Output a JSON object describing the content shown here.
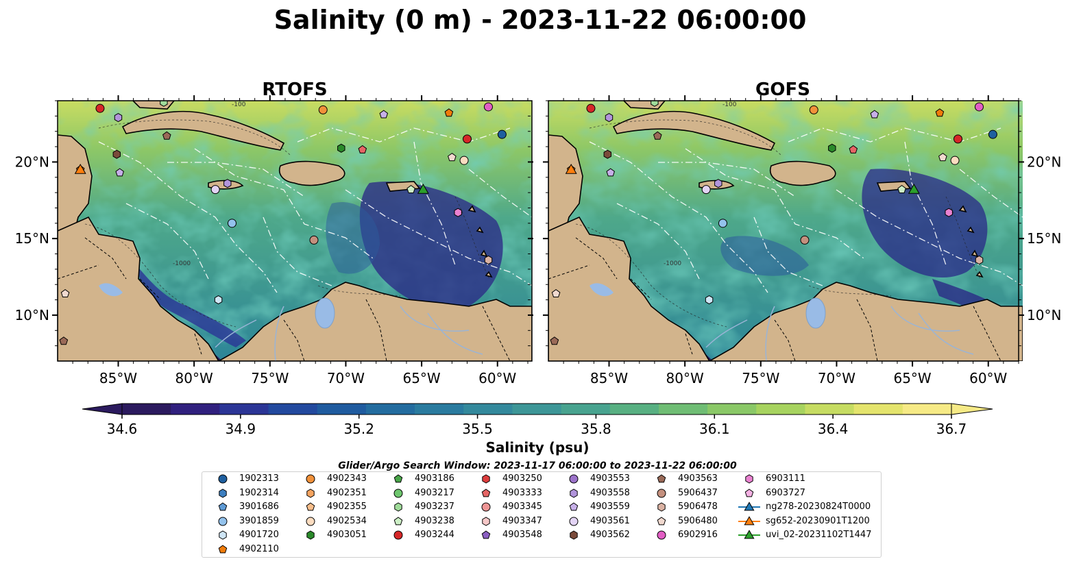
{
  "title": "Salinity (0 m) - 2023-11-22 06:00:00",
  "panels": [
    {
      "name": "RTOFS"
    },
    {
      "name": "GOFS"
    }
  ],
  "axes": {
    "lon_ticks": [
      "85°W",
      "80°W",
      "75°W",
      "70°W",
      "65°W",
      "60°W"
    ],
    "lat_ticks": [
      "20°N",
      "15°N",
      "10°N"
    ],
    "lon_range": [
      -89,
      -58
    ],
    "lat_range": [
      7,
      24
    ]
  },
  "contour_labels": [
    "-100",
    "-1000"
  ],
  "colorbar": {
    "label": "Salinity (psu)",
    "ticks": [
      "34.6",
      "34.9",
      "35.2",
      "35.5",
      "35.8",
      "36.1",
      "36.4",
      "36.7"
    ],
    "min": 34.6,
    "max": 36.7,
    "colors": [
      "#2b1a5e",
      "#30207e",
      "#2b3596",
      "#22499e",
      "#1f5b9f",
      "#236c9f",
      "#2a7b9f",
      "#33899c",
      "#3d9697",
      "#48a38f",
      "#58b082",
      "#6fbd74",
      "#8ac867",
      "#a7d35f",
      "#c6dc62",
      "#e4e46d",
      "#f6ea86"
    ]
  },
  "search_window": "Glider/Argo Search Window: 2023-11-17 06:00:00 to 2023-11-22 06:00:00",
  "colors": {
    "land": "#d2b48c",
    "lakes": "#99bbe6",
    "rivers": "#9ab4d6",
    "eez_lines": "#ffffff"
  },
  "legend": [
    {
      "label": "1902313",
      "marker": "circle",
      "color": "#1f5f9f"
    },
    {
      "label": "1902314",
      "marker": "hexagon",
      "color": "#3d7fc0"
    },
    {
      "label": "3901686",
      "marker": "pentagon",
      "color": "#5f9bd6"
    },
    {
      "label": "3901859",
      "marker": "circle",
      "color": "#93c2ec"
    },
    {
      "label": "4901720",
      "marker": "hexagon",
      "color": "#cfe6f7"
    },
    {
      "label": "4902110",
      "marker": "pentagon",
      "color": "#f07c0a"
    },
    {
      "label": "4902343",
      "marker": "circle",
      "color": "#f1913a"
    },
    {
      "label": "4902351",
      "marker": "hexagon",
      "color": "#f5a460"
    },
    {
      "label": "4902355",
      "marker": "pentagon",
      "color": "#f8be8b"
    },
    {
      "label": "4902534",
      "marker": "circle",
      "color": "#fbdcc0"
    },
    {
      "label": "4903051",
      "marker": "hexagon",
      "color": "#2a8a2a"
    },
    {
      "label": "4903186",
      "marker": "pentagon",
      "color": "#49a549"
    },
    {
      "label": "4903217",
      "marker": "circle",
      "color": "#6ec66e"
    },
    {
      "label": "4903237",
      "marker": "hexagon",
      "color": "#a0dc9a"
    },
    {
      "label": "4903238",
      "marker": "pentagon",
      "color": "#cdf0c6"
    },
    {
      "label": "4903244",
      "marker": "circle",
      "color": "#d62728"
    },
    {
      "label": "4903250",
      "marker": "hexagon",
      "color": "#dd3d3d"
    },
    {
      "label": "4903333",
      "marker": "pentagon",
      "color": "#e56565"
    },
    {
      "label": "4903345",
      "marker": "circle",
      "color": "#ee9595"
    },
    {
      "label": "4903347",
      "marker": "hexagon",
      "color": "#f6c8c8"
    },
    {
      "label": "4903548",
      "marker": "pentagon",
      "color": "#8b5fc2"
    },
    {
      "label": "4903553",
      "marker": "circle",
      "color": "#9b72c9"
    },
    {
      "label": "4903558",
      "marker": "hexagon",
      "color": "#b194db"
    },
    {
      "label": "4903559",
      "marker": "pentagon",
      "color": "#c7b0e8"
    },
    {
      "label": "4903561",
      "marker": "circle",
      "color": "#e3d4f5"
    },
    {
      "label": "4903562",
      "marker": "hexagon",
      "color": "#7a4a3a"
    },
    {
      "label": "4903563",
      "marker": "pentagon",
      "color": "#9a6a58"
    },
    {
      "label": "5906437",
      "marker": "circle",
      "color": "#c4907e"
    },
    {
      "label": "5906478",
      "marker": "hexagon",
      "color": "#dab2a3"
    },
    {
      "label": "5906480",
      "marker": "pentagon",
      "color": "#f1d9cf"
    },
    {
      "label": "6902916",
      "marker": "circle",
      "color": "#e25ec4"
    },
    {
      "label": "6903111",
      "marker": "hexagon",
      "color": "#ea82d1"
    },
    {
      "label": "6903727",
      "marker": "pentagon",
      "color": "#f5b1e3"
    },
    {
      "label": "ng278-20230824T0000",
      "marker": "triangle-line",
      "color": "#1f77b4"
    },
    {
      "label": "sg652-20230901T1200",
      "marker": "triangle-line",
      "color": "#ff7f0e"
    },
    {
      "label": "uvi_02-20231102T1447",
      "marker": "triangle-line",
      "color": "#2ca02c"
    }
  ],
  "floats_on_map": [
    {
      "id": "4903244",
      "lon": -86.2,
      "lat": 23.5
    },
    {
      "id": "4903558",
      "lon": -85.0,
      "lat": 22.9
    },
    {
      "id": "4903237",
      "lon": -82.0,
      "lat": 23.9
    },
    {
      "id": "4902343",
      "lon": -71.5,
      "lat": 23.4
    },
    {
      "id": "4903559",
      "lon": -67.5,
      "lat": 23.1
    },
    {
      "id": "4902110",
      "lon": -63.2,
      "lat": 23.2
    },
    {
      "id": "6902916",
      "lon": -60.6,
      "lat": 23.6
    },
    {
      "id": "1902313",
      "lon": -59.7,
      "lat": 21.8
    },
    {
      "id": "4903244",
      "lon": -62.0,
      "lat": 21.5
    },
    {
      "id": "4903562",
      "lon": -85.1,
      "lat": 20.5
    },
    {
      "id": "4903563",
      "lon": -81.8,
      "lat": 21.7
    },
    {
      "id": "4903051",
      "lon": -70.3,
      "lat": 20.9
    },
    {
      "id": "4903333",
      "lon": -68.9,
      "lat": 20.8
    },
    {
      "id": "5906480",
      "lon": -63.0,
      "lat": 20.3
    },
    {
      "id": "4902534",
      "lon": -62.2,
      "lat": 20.1
    },
    {
      "id": "4902110",
      "lon": -87.5,
      "lat": 19.5
    },
    {
      "id": "4903559",
      "lon": -84.9,
      "lat": 19.3
    },
    {
      "id": "4903561",
      "lon": -78.6,
      "lat": 18.2
    },
    {
      "id": "4903558",
      "lon": -77.8,
      "lat": 18.6
    },
    {
      "id": "4903238",
      "lon": -65.7,
      "lat": 18.2
    },
    {
      "id": "3901859",
      "lon": -77.5,
      "lat": 16.0
    },
    {
      "id": "6903111",
      "lon": -62.6,
      "lat": 16.7
    },
    {
      "id": "5906437",
      "lon": -72.1,
      "lat": 14.9
    },
    {
      "id": "5906478",
      "lon": -60.6,
      "lat": 13.6
    },
    {
      "id": "4901720",
      "lon": -78.4,
      "lat": 11.0
    },
    {
      "id": "5906480",
      "lon": -88.5,
      "lat": 11.4
    },
    {
      "id": "4903563",
      "lon": -88.6,
      "lat": 8.3
    }
  ],
  "gliders_on_map": [
    {
      "id": "sg652-20230901T1200",
      "lon": -87.5,
      "lat": 19.5
    },
    {
      "id": "uvi_02-20231102T1447",
      "lon": -64.9,
      "lat": 18.2
    }
  ]
}
